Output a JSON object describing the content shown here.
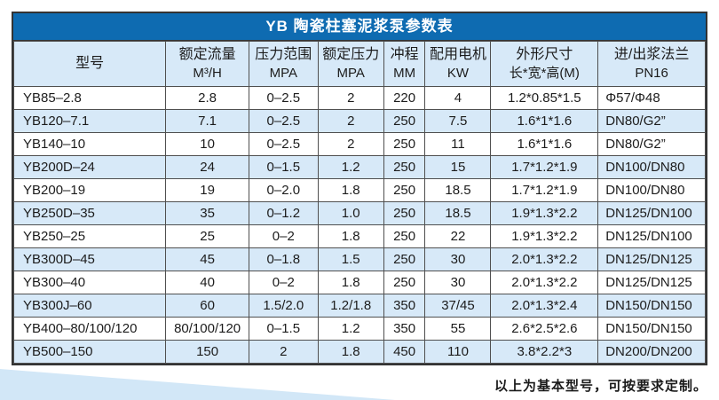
{
  "table": {
    "title": "YB 陶瓷柱塞泥浆泵参数表",
    "columns": [
      {
        "label": "型号",
        "unit": ""
      },
      {
        "label": "额定流量",
        "unit": "M³/H"
      },
      {
        "label": "压力范围",
        "unit": "MPA"
      },
      {
        "label": "额定压力",
        "unit": "MPA"
      },
      {
        "label": "冲程",
        "unit": "MM"
      },
      {
        "label": "配用电机",
        "unit": "KW"
      },
      {
        "label": "外形尺寸",
        "unit": "长*宽*高(M)"
      },
      {
        "label": "进/出浆法兰",
        "unit": "PN16"
      }
    ],
    "rows": [
      [
        "YB85–2.8",
        "2.8",
        "0–2.5",
        "2",
        "220",
        "4",
        "1.2*0.85*1.5",
        "Φ57/Φ48"
      ],
      [
        "YB120–7.1",
        "7.1",
        "0–2.5",
        "2",
        "250",
        "7.5",
        "1.6*1*1.6",
        "DN80/G2”"
      ],
      [
        "YB140–10",
        "10",
        "0–2.5",
        "2",
        "250",
        "11",
        "1.6*1*1.6",
        "DN80/G2”"
      ],
      [
        "YB200D–24",
        "24",
        "0–1.5",
        "1.2",
        "250",
        "15",
        "1.7*1.2*1.9",
        "DN100/DN80"
      ],
      [
        "YB200–19",
        "19",
        "0–2.0",
        "1.8",
        "250",
        "18.5",
        "1.7*1.2*1.9",
        "DN100/DN80"
      ],
      [
        "YB250D–35",
        "35",
        "0–1.2",
        "1.0",
        "250",
        "18.5",
        "1.9*1.3*2.2",
        "DN125/DN100"
      ],
      [
        "YB250–25",
        "25",
        "0–2",
        "1.8",
        "250",
        "22",
        "1.9*1.3*2.2",
        "DN125/DN100"
      ],
      [
        "YB300D–45",
        "45",
        "0–1.8",
        "1.5",
        "250",
        "30",
        "2.0*1.3*2.2",
        "DN125/DN125"
      ],
      [
        "YB300–40",
        "40",
        "0–2",
        "1.8",
        "250",
        "30",
        "2.0*1.3*2.2",
        "DN125/DN125"
      ],
      [
        "YB300J–60",
        "60",
        "1.5/2.0",
        "1.2/1.8",
        "350",
        "37/45",
        "2.0*1.3*2.4",
        "DN150/DN150"
      ],
      [
        "YB400–80/100/120",
        "80/100/120",
        "0–1.5",
        "1.2",
        "350",
        "55",
        "2.6*2.5*2.6",
        "DN150/DN150"
      ],
      [
        "YB500–150",
        "150",
        "2",
        "1.8",
        "450",
        "110",
        "3.8*2.2*3",
        "DN200/DN200"
      ]
    ]
  },
  "footer": {
    "note": "以上为基本型号，可按要求定制。"
  },
  "colors": {
    "title_bar": "#0e6bb1",
    "row_alt": "#d7e9f8",
    "border": "#4f4f4f",
    "wedge": "#d2e7f7"
  }
}
